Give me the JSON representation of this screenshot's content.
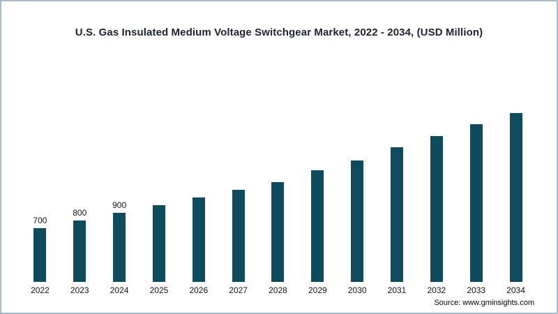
{
  "page": {
    "source": "Source: www.gminsights.com"
  },
  "chart_data": {
    "type": "bar",
    "title": "U.S. Gas Insulated Medium Voltage Switchgear Market, 2022 - 2034, (USD Million)",
    "xlabel": "",
    "ylabel": "USD Million",
    "ylim": [
      0,
      2400
    ],
    "grid": false,
    "legend": false,
    "bar_color": "#0d4b5d",
    "categories": [
      "2022",
      "2023",
      "2024",
      "2025",
      "2026",
      "2027",
      "2028",
      "2029",
      "2030",
      "2031",
      "2032",
      "2033",
      "2034"
    ],
    "values": [
      700,
      800,
      900,
      1000,
      1100,
      1200,
      1300,
      1450,
      1580,
      1750,
      1900,
      2050,
      2200
    ],
    "value_labels": [
      "700",
      "800",
      "900",
      "",
      "",
      "",
      "",
      "",
      "",
      "",
      "",
      "",
      ""
    ]
  }
}
